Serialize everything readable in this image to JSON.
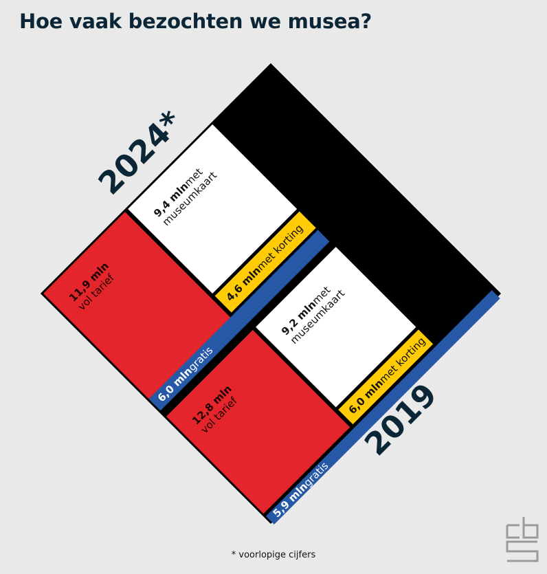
{
  "title": "Hoe vaak bezochten we musea?",
  "footnote": "* voorlopige cijfers",
  "chart_data": {
    "type": "treemap",
    "title": "Hoe vaak bezochten we musea?",
    "unit": "mln",
    "groups": [
      {
        "year": "2024*",
        "segments": [
          {
            "key": "vol",
            "value": 11.9,
            "value_label": "11,9 mln",
            "label": "vol tarief",
            "color": "#e4262c"
          },
          {
            "key": "museumkaart",
            "value": 9.4,
            "value_label": "9,4 mln",
            "label": "met museumkaart",
            "label_lines": [
              "met",
              "museumkaart"
            ],
            "color": "#ffffff"
          },
          {
            "key": "korting",
            "value": 4.6,
            "value_label": "4,6 mln",
            "label": "met korting",
            "color": "#ffcb05"
          },
          {
            "key": "gratis",
            "value": 6.0,
            "value_label": "6,0 mln",
            "label": "gratis",
            "color": "#2558a6"
          }
        ]
      },
      {
        "year": "2019",
        "segments": [
          {
            "key": "vol",
            "value": 12.8,
            "value_label": "12,8 mln",
            "label": "vol tarief",
            "color": "#e4262c"
          },
          {
            "key": "museumkaart",
            "value": 9.2,
            "value_label": "9,2 mln",
            "label": "met museumkaart",
            "label_lines": [
              "met",
              "museumkaart"
            ],
            "color": "#ffffff"
          },
          {
            "key": "korting",
            "value": 6.0,
            "value_label": "6,0 mln",
            "label": "met korting",
            "color": "#ffcb05"
          },
          {
            "key": "gratis",
            "value": 5.9,
            "value_label": "5,9 mln",
            "label": "gratis",
            "color": "#2558a6"
          }
        ]
      }
    ],
    "colors": {
      "frame": "#000000",
      "background": "#e9e9e9",
      "border": "#ffffff",
      "text_dark": "#0b2636"
    }
  }
}
